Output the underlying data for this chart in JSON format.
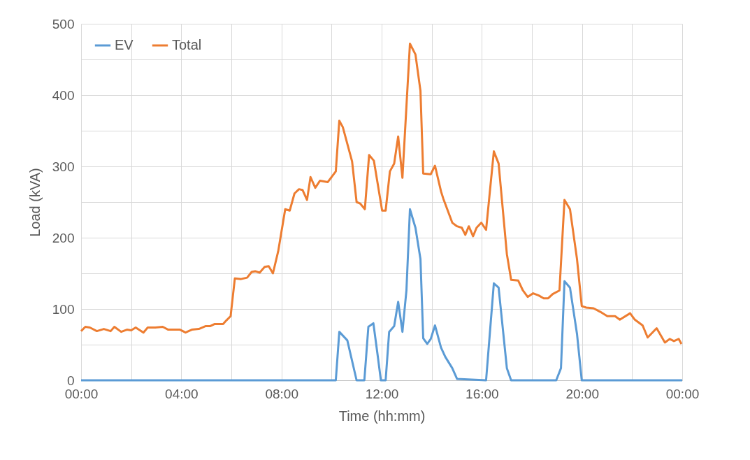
{
  "chart_data": {
    "type": "line",
    "xlabel": "Time (hh:mm)",
    "ylabel": "Load (kVA)",
    "xlim": [
      0,
      24
    ],
    "ylim": [
      0,
      500
    ],
    "xticks": [
      {
        "value": 0,
        "label": "00:00"
      },
      {
        "value": 2,
        "label": null
      },
      {
        "value": 4,
        "label": "04:00"
      },
      {
        "value": 6,
        "label": null
      },
      {
        "value": 8,
        "label": "08:00"
      },
      {
        "value": 10,
        "label": null
      },
      {
        "value": 12,
        "label": "12:00"
      },
      {
        "value": 14,
        "label": null
      },
      {
        "value": 16,
        "label": "16:00"
      },
      {
        "value": 18,
        "label": null
      },
      {
        "value": 20,
        "label": "20:00"
      },
      {
        "value": 22,
        "label": null
      },
      {
        "value": 24,
        "label": "00:00"
      }
    ],
    "yticks": [
      0,
      {
        "value": 50,
        "label": null
      },
      100,
      {
        "value": 150,
        "label": null
      },
      200,
      {
        "value": 250,
        "label": null
      },
      300,
      {
        "value": 350,
        "label": null
      },
      400,
      {
        "value": 450,
        "label": null
      },
      500
    ],
    "grid": true,
    "legend": "top left",
    "marker": "none",
    "line_style": "solid",
    "series": [
      {
        "name": "EV",
        "color": "#5b9bd5",
        "x": [
          0,
          10.17,
          10.31,
          10.63,
          11.0,
          11.31,
          11.47,
          11.67,
          11.83,
          11.97,
          12.16,
          12.3,
          12.5,
          12.66,
          12.83,
          12.99,
          13.13,
          13.35,
          13.55,
          13.66,
          13.82,
          13.96,
          14.13,
          14.37,
          14.54,
          14.82,
          15.01,
          16.17,
          16.48,
          16.67,
          17.0,
          17.17,
          18.97,
          19.16,
          19.3,
          19.52,
          19.8,
          19.99,
          24
        ],
        "values": [
          0,
          0,
          68,
          56,
          0,
          0,
          75,
          80,
          38,
          0,
          0,
          68,
          76,
          110,
          68,
          126,
          240,
          214,
          170,
          59,
          51,
          58,
          77,
          46,
          33,
          17,
          2,
          0,
          136,
          130,
          17,
          0,
          0,
          17,
          139,
          130,
          65,
          0,
          0
        ]
      },
      {
        "name": "Total",
        "color": "#ed7d31",
        "x": [
          0,
          0.17,
          0.35,
          0.63,
          0.91,
          1.18,
          1.33,
          1.6,
          1.83,
          2.0,
          2.18,
          2.49,
          2.66,
          2.96,
          3.26,
          3.48,
          3.95,
          4.17,
          4.42,
          4.7,
          4.98,
          5.16,
          5.34,
          5.67,
          5.8,
          5.97,
          6.14,
          6.39,
          6.63,
          6.81,
          6.95,
          7.13,
          7.33,
          7.49,
          7.66,
          7.87,
          8.15,
          8.33,
          8.52,
          8.7,
          8.84,
          9.02,
          9.16,
          9.35,
          9.54,
          9.85,
          10.17,
          10.31,
          10.45,
          10.82,
          11.0,
          11.14,
          11.33,
          11.5,
          11.69,
          12.02,
          12.16,
          12.33,
          12.5,
          12.66,
          12.83,
          13.13,
          13.35,
          13.55,
          13.66,
          13.96,
          14.13,
          14.37,
          14.46,
          14.82,
          15.01,
          15.2,
          15.34,
          15.48,
          15.65,
          15.79,
          15.98,
          16.17,
          16.48,
          16.67,
          17.0,
          17.17,
          17.45,
          17.64,
          17.83,
          18.05,
          18.27,
          18.47,
          18.65,
          18.83,
          19.1,
          19.3,
          19.52,
          19.8,
          19.99,
          20.17,
          20.46,
          20.73,
          21.01,
          21.32,
          21.51,
          21.92,
          22.11,
          22.42,
          22.62,
          22.98,
          23.31,
          23.5,
          23.67,
          23.86,
          23.97
        ],
        "values": [
          69,
          75,
          74,
          69,
          72,
          69,
          75,
          68,
          71,
          70,
          74,
          67,
          74,
          74,
          75,
          71,
          71,
          67,
          71,
          72,
          76,
          76,
          79,
          79,
          84,
          90,
          143,
          142,
          144,
          152,
          153,
          151,
          159,
          160,
          150,
          181,
          240,
          238,
          262,
          268,
          267,
          253,
          285,
          270,
          280,
          278,
          293,
          364,
          355,
          307,
          250,
          248,
          240,
          316,
          308,
          238,
          238,
          293,
          304,
          342,
          284,
          472,
          457,
          406,
          290,
          289,
          301,
          265,
          255,
          221,
          216,
          214,
          204,
          216,
          202,
          214,
          221,
          211,
          321,
          304,
          177,
          141,
          140,
          126,
          117,
          122,
          119,
          115,
          115,
          121,
          126,
          253,
          240,
          170,
          104,
          102,
          101,
          96,
          90,
          90,
          85,
          94,
          85,
          77,
          60,
          73,
          53,
          58,
          55,
          58,
          51
        ]
      }
    ]
  }
}
